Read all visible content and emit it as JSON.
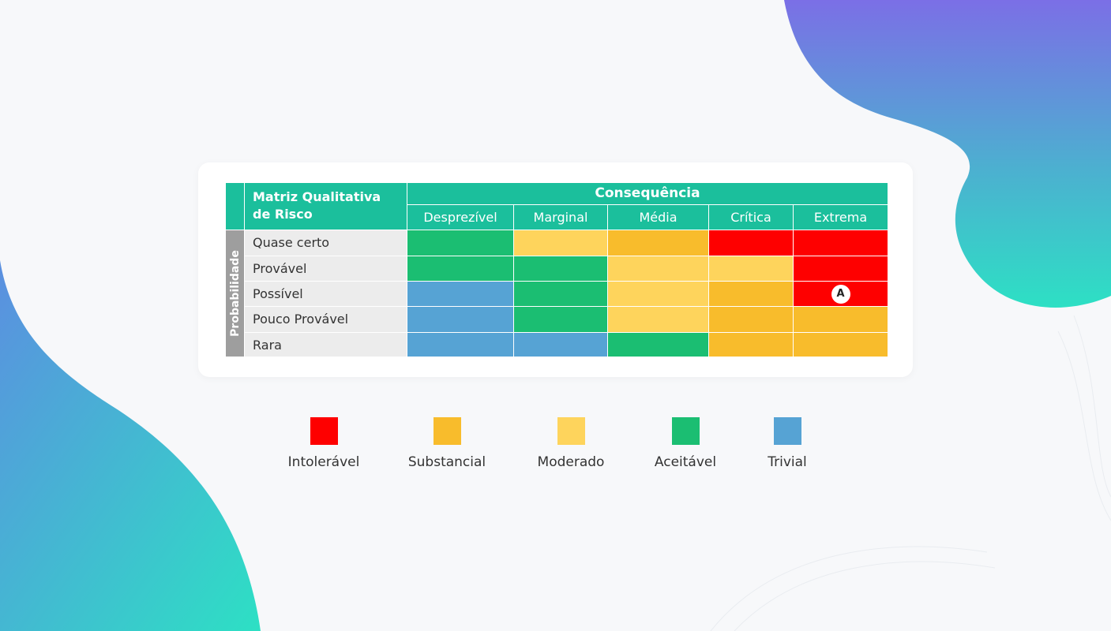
{
  "colors": {
    "intoleravel": "#fe0000",
    "substancial": "#f8bc2c",
    "moderado": "#fed45c",
    "aceitavel": "#1bbe72",
    "trivial": "#56a3d4",
    "header": "#1bbf9c",
    "axis": "#9e9e9e"
  },
  "matrix": {
    "title": "Matriz Qualitativa\nde Risco",
    "consequence_title": "Consequência",
    "probability_title": "Probabilidade",
    "columns": [
      "Desprezível",
      "Marginal",
      "Média",
      "Crítica",
      "Extrema"
    ],
    "rows": [
      "Quase certo",
      "Provável",
      "Possível",
      "Pouco Provável",
      "Rara"
    ],
    "cells": [
      [
        "aceitavel",
        "moderado",
        "substancial",
        "intoleravel",
        "intoleravel"
      ],
      [
        "aceitavel",
        "aceitavel",
        "moderado",
        "moderado",
        "intoleravel"
      ],
      [
        "trivial",
        "aceitavel",
        "moderado",
        "substancial",
        "intoleravel"
      ],
      [
        "trivial",
        "aceitavel",
        "moderado",
        "substancial",
        "substancial"
      ],
      [
        "trivial",
        "trivial",
        "aceitavel",
        "substancial",
        "substancial"
      ]
    ],
    "marker": {
      "label": "A",
      "row": 2,
      "col": 4
    }
  },
  "legend": [
    {
      "key": "intoleravel",
      "label": "Intolerável"
    },
    {
      "key": "substancial",
      "label": "Substancial"
    },
    {
      "key": "moderado",
      "label": "Moderado"
    },
    {
      "key": "aceitavel",
      "label": "Aceitável"
    },
    {
      "key": "trivial",
      "label": "Trivial"
    }
  ]
}
